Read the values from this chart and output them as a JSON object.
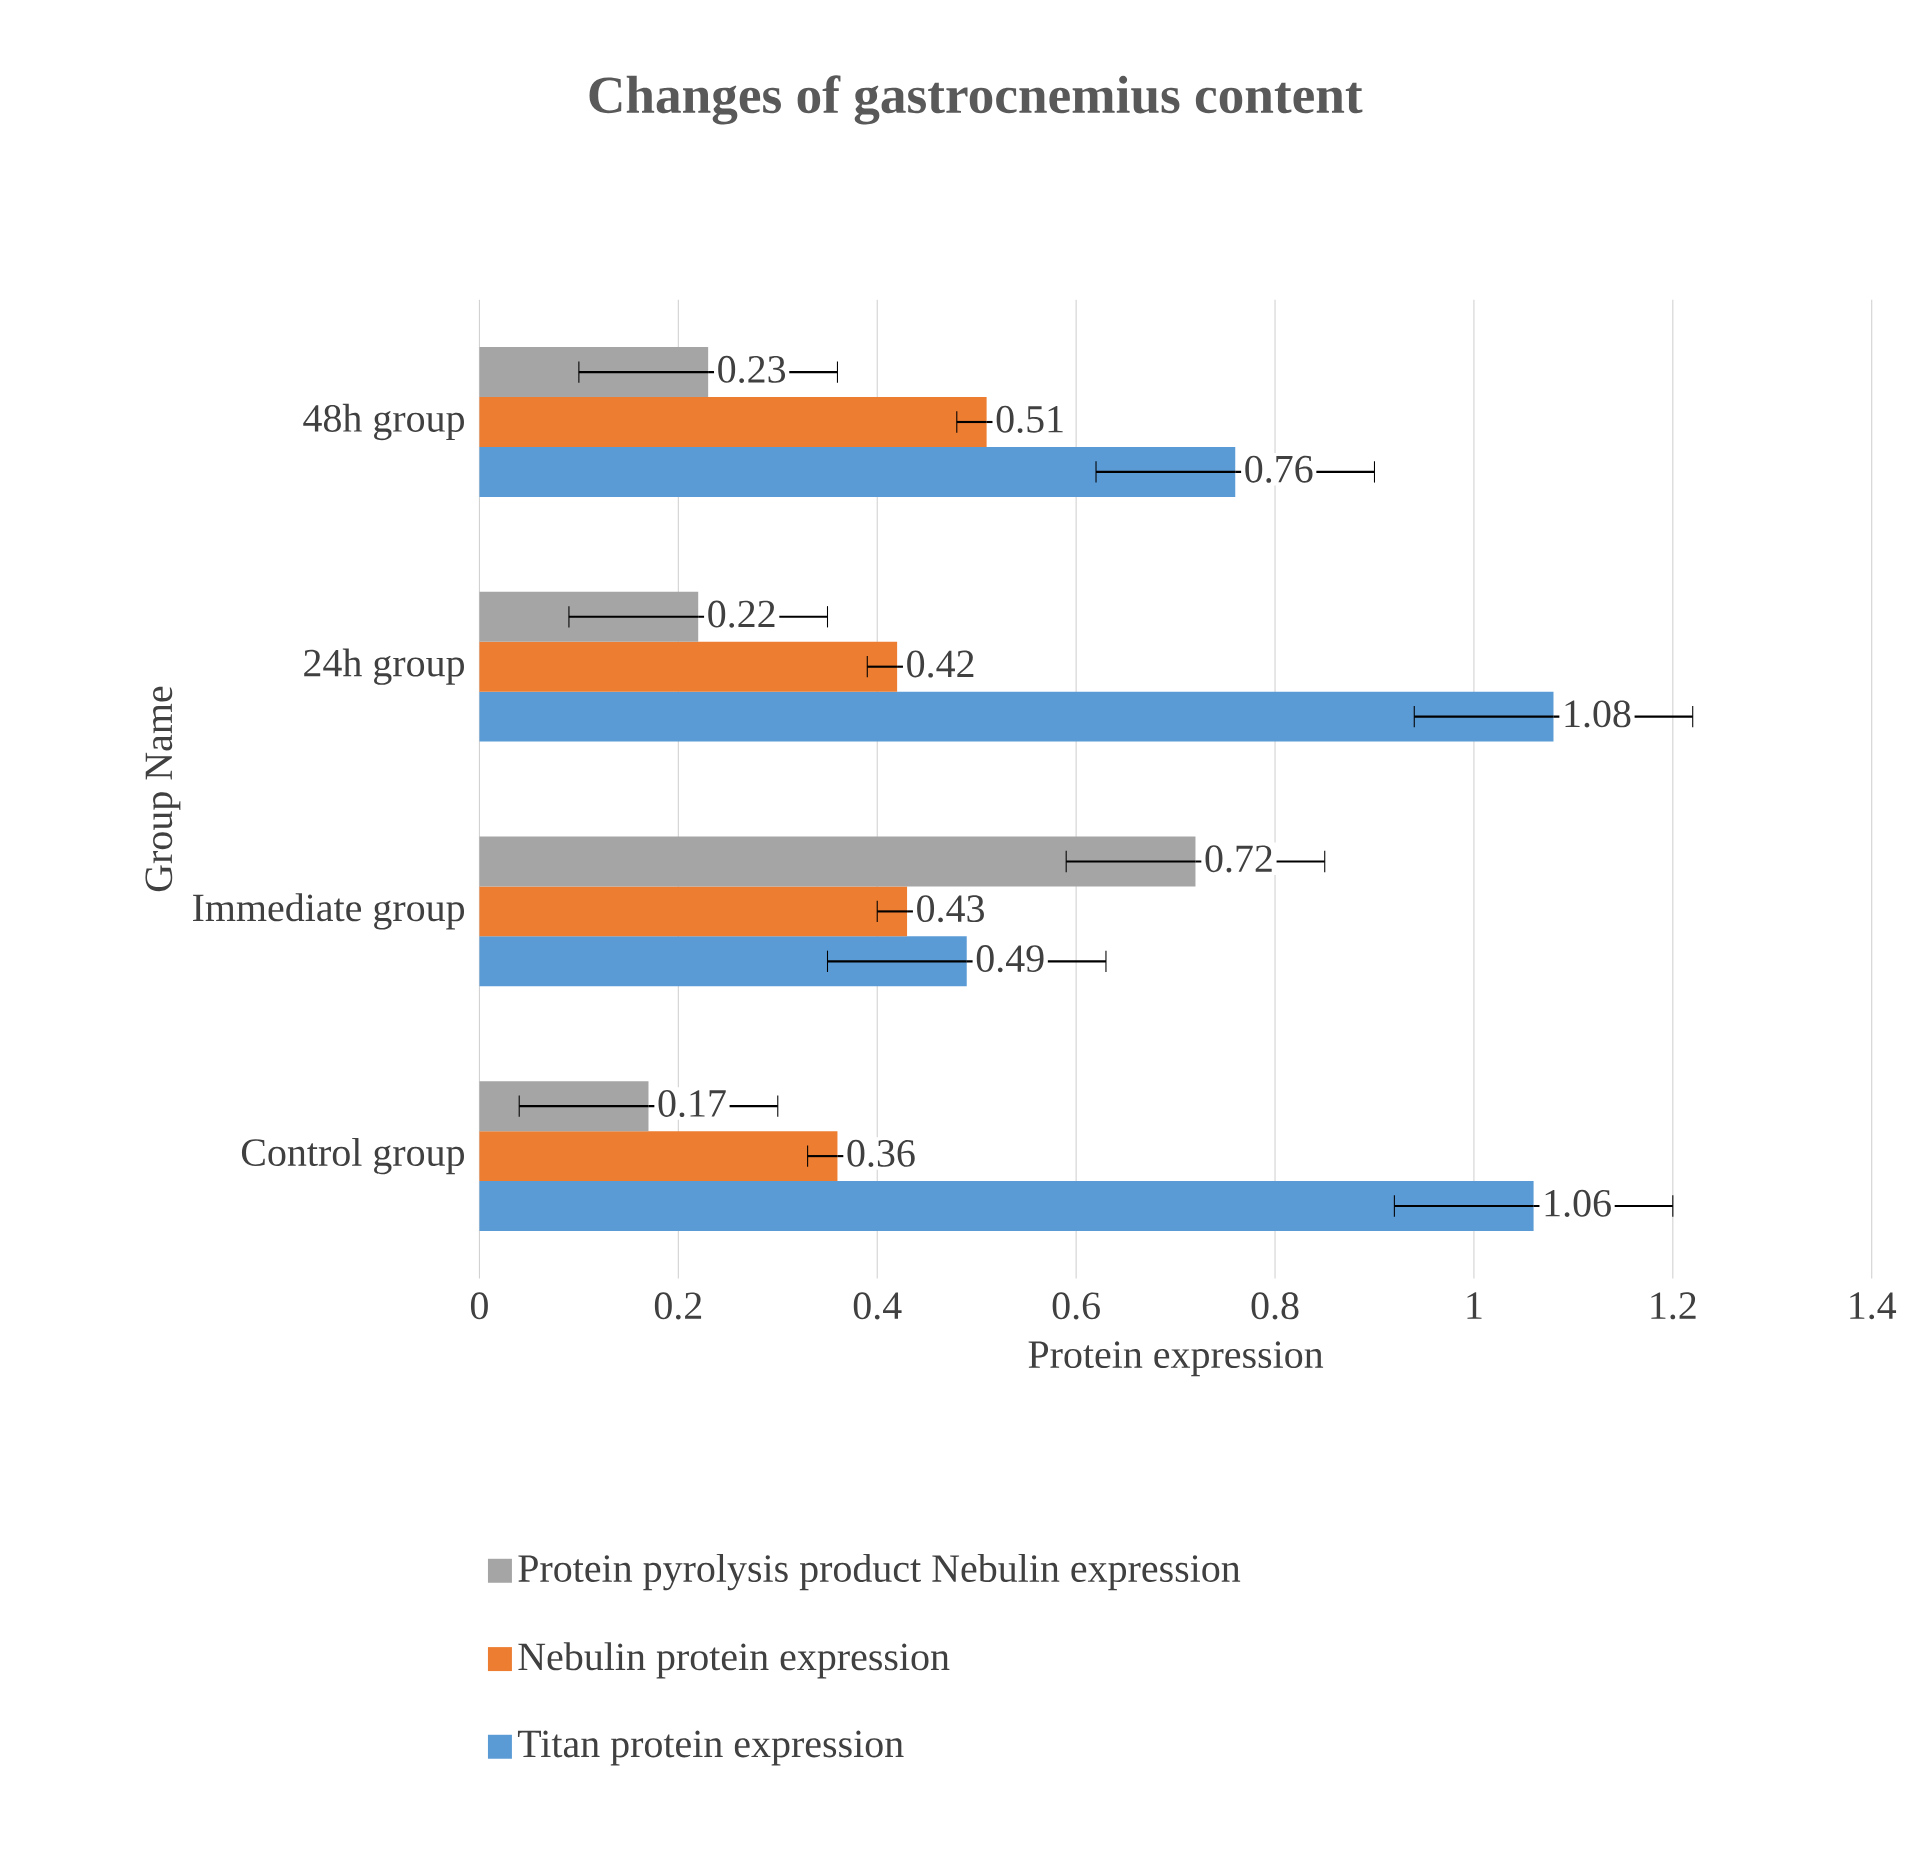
{
  "chart_data": {
    "type": "bar",
    "orientation": "horizontal",
    "title": "Changes of gastrocnemius content",
    "xlabel": "Protein expression",
    "ylabel": "Group Name",
    "categories": [
      "48h group",
      "24h group",
      "Immediate group",
      "Control group"
    ],
    "series": [
      {
        "name": "Titan protein expression",
        "color": "#5b9bd5",
        "values": [
          0.76,
          1.08,
          0.49,
          1.06
        ],
        "errors": [
          0.14,
          0.14,
          0.14,
          0.14
        ]
      },
      {
        "name": "Nebulin protein expression",
        "color": "#ed7d31",
        "values": [
          0.51,
          0.42,
          0.43,
          0.36
        ],
        "errors": [
          0.03,
          0.03,
          0.03,
          0.03
        ]
      },
      {
        "name": "Protein pyrolysis product Nebulin expression",
        "color": "#a5a5a5",
        "values": [
          0.23,
          0.22,
          0.72,
          0.17
        ],
        "errors": [
          0.13,
          0.13,
          0.13,
          0.13
        ]
      }
    ],
    "xlim": [
      0,
      1.4
    ],
    "xticks": [
      0,
      0.2,
      0.4,
      0.6,
      0.8,
      1,
      1.2,
      1.4
    ],
    "grid": "x",
    "legend": "bottom",
    "data_labels": true
  }
}
